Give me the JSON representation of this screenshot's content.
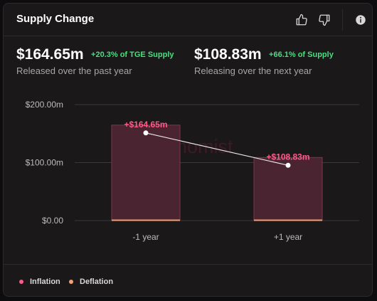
{
  "header": {
    "title": "Supply Change",
    "icons": [
      "thumbs-up-icon",
      "thumbs-down-icon",
      "info-icon"
    ]
  },
  "stats": [
    {
      "value": "$164.65m",
      "change": "+20.3% of TGE Supply",
      "caption": "Released over the past year"
    },
    {
      "value": "$108.83m",
      "change": "+66.1% of Supply",
      "caption": "Releasing over the next year"
    }
  ],
  "watermark": "tokenomist",
  "colors": {
    "accent": "#ff5a8a",
    "bar_fill": "#4a2430",
    "bar_stroke": "#7a3848",
    "deflation": "#f4a072",
    "positive": "#4ade80"
  },
  "chart_data": {
    "type": "bar",
    "categories": [
      "-1 year",
      "+1 year"
    ],
    "series": [
      {
        "name": "Inflation",
        "values": [
          164.65,
          108.83
        ]
      },
      {
        "name": "Deflation",
        "values": [
          0,
          0
        ]
      }
    ],
    "data_labels": [
      "+$164.65m",
      "+$108.83m"
    ],
    "y_ticks": [
      {
        "value": 0,
        "label": "$0.00"
      },
      {
        "value": 100,
        "label": "$100.00m"
      },
      {
        "value": 200,
        "label": "$200.00m"
      }
    ],
    "ylim": [
      0,
      200
    ],
    "y_unit": "million USD",
    "grid": true,
    "connector_line": true,
    "legend_position": "bottom-left",
    "legend": [
      {
        "name": "Inflation",
        "color": "#ff5a8a"
      },
      {
        "name": "Deflation",
        "color": "#f4a072"
      }
    ]
  }
}
